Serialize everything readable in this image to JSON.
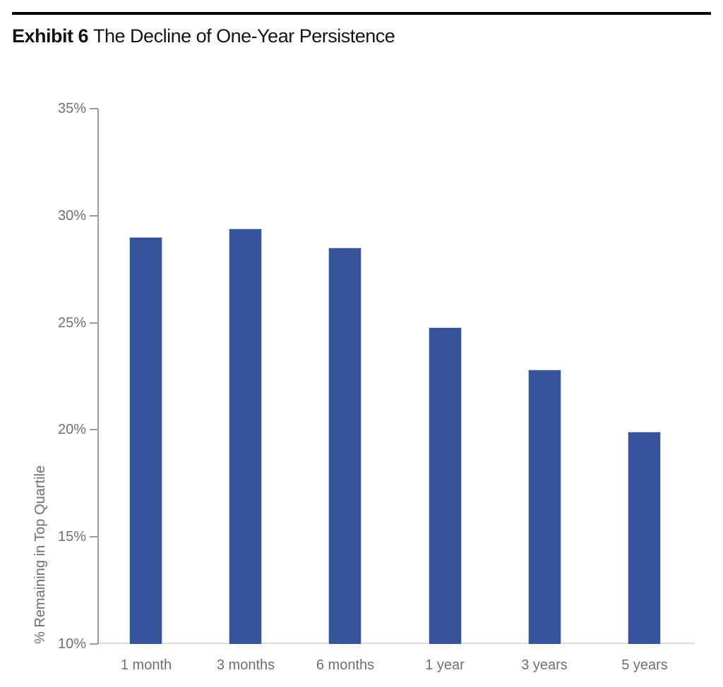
{
  "header": {
    "exhibit_label": "Exhibit 6",
    "title": "The Decline of One-Year Persistence"
  },
  "chart_data": {
    "type": "bar",
    "title": "Exhibit 6 The Decline of One-Year Persistence",
    "categories": [
      "1 month",
      "3 months",
      "6 months",
      "1 year",
      "3 years",
      "5 years"
    ],
    "values": [
      29.0,
      29.4,
      28.5,
      24.8,
      22.8,
      19.9
    ],
    "xlabel": "",
    "ylabel": "% Remaining in Top Quartile",
    "ylim": [
      10,
      35
    ],
    "yticks": [
      35,
      30,
      25,
      20,
      15,
      10
    ],
    "ytick_labels": [
      "35%",
      "30%",
      "25%",
      "20%",
      "15%",
      "10%"
    ],
    "grid": false,
    "legend": "none",
    "bar_color": "#37549b",
    "bar_border_color": "#c9cfe3",
    "axis_color": "#9b9b9b",
    "baseline_color": "#dcdcdc",
    "label_color": "#6e6f72"
  }
}
